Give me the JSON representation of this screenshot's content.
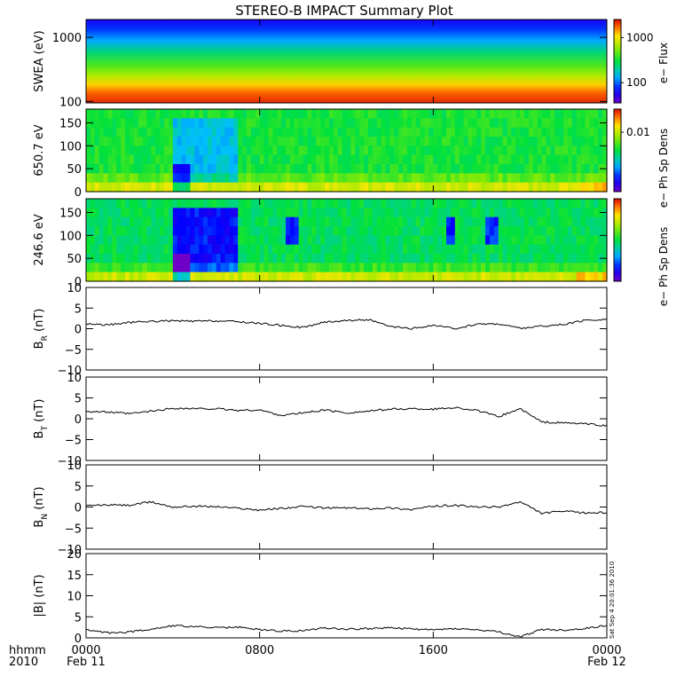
{
  "figure": {
    "title": "STEREO-B IMPACT Summary Plot",
    "time_unit_label": "hhmm",
    "year_label": "2010",
    "start_date_label": "Feb 11",
    "end_date_label": "Feb 12",
    "creation_stamp": "Sat Sep  4 20:01:36 2010"
  },
  "chart_data": [
    {
      "type": "heatmap",
      "name": "swea-spectrogram",
      "ylabel": "SWEA (eV)",
      "yscale": "log",
      "ylim": [
        95,
        1900
      ],
      "yticks": [
        100,
        1000
      ],
      "ytick_labels": [
        "100",
        "1000"
      ],
      "colorbar": {
        "label": "e− Flux",
        "ticks": [
          100,
          1000
        ],
        "tick_labels": [
          "100",
          "1000"
        ]
      }
    },
    {
      "type": "heatmap",
      "name": "pad-650",
      "ylabel": "650.7 eV",
      "ylim": [
        0,
        180
      ],
      "yticks": [
        0,
        50,
        100,
        150
      ],
      "ytick_labels": [
        "0",
        "50",
        "100",
        "150"
      ],
      "colorbar": {
        "label": "e− Ph Sp Dens",
        "ticks": [
          0.01
        ],
        "tick_labels": [
          "0.01"
        ]
      }
    },
    {
      "type": "heatmap",
      "name": "pad-246",
      "ylabel": "246.6 eV",
      "ylim": [
        0,
        180
      ],
      "yticks": [
        0,
        50,
        100,
        150
      ],
      "ytick_labels": [
        "0",
        "50",
        "100",
        "150"
      ],
      "colorbar": {
        "label": "e− Ph Sp Dens",
        "ticks": [],
        "tick_labels": []
      }
    },
    {
      "type": "line",
      "name": "br",
      "ylabel": "B_R (nT)",
      "ylim": [
        -10,
        10
      ],
      "yticks": [
        -10,
        -5,
        0,
        5,
        10
      ],
      "ytick_labels": [
        "−10",
        "−5",
        "0",
        "5",
        "10"
      ],
      "x": [
        0,
        1,
        2,
        3,
        4,
        5,
        6,
        7,
        8,
        9,
        10,
        11,
        12,
        13,
        14,
        15,
        16,
        17,
        18,
        19,
        20,
        21,
        22,
        23,
        24
      ],
      "y": [
        1.2,
        0.9,
        1.5,
        1.8,
        1.9,
        1.8,
        1.9,
        1.7,
        1.3,
        0.8,
        0.3,
        1.6,
        2.0,
        2.2,
        0.5,
        0.0,
        0.8,
        0.0,
        1.1,
        1.2,
        0.1,
        0.6,
        1.0,
        2.0,
        2.3
      ]
    },
    {
      "type": "line",
      "name": "bt",
      "ylabel": "B_T (nT)",
      "ylim": [
        -10,
        10
      ],
      "yticks": [
        -10,
        -5,
        0,
        5,
        10
      ],
      "ytick_labels": [
        "−10",
        "−5",
        "0",
        "5",
        "10"
      ],
      "x": [
        0,
        1,
        2,
        3,
        4,
        5,
        6,
        7,
        8,
        9,
        10,
        11,
        12,
        13,
        14,
        15,
        16,
        17,
        18,
        19,
        20,
        21,
        22,
        23,
        24
      ],
      "y": [
        1.8,
        1.6,
        1.2,
        1.8,
        2.5,
        2.4,
        2.4,
        2.0,
        2.1,
        0.8,
        1.4,
        2.1,
        1.4,
        1.8,
        2.3,
        2.4,
        2.3,
        2.7,
        2.0,
        0.5,
        2.4,
        -0.8,
        -1.0,
        -1.2,
        -1.7
      ]
    },
    {
      "type": "line",
      "name": "bn",
      "ylabel": "B_N (nT)",
      "ylim": [
        -10,
        10
      ],
      "yticks": [
        -10,
        -5,
        0,
        5,
        10
      ],
      "ytick_labels": [
        "−10",
        "−5",
        "0",
        "5",
        "10"
      ],
      "x": [
        0,
        1,
        2,
        3,
        4,
        5,
        6,
        7,
        8,
        9,
        10,
        11,
        12,
        13,
        14,
        15,
        16,
        17,
        18,
        19,
        20,
        21,
        22,
        23,
        24
      ],
      "y": [
        0.3,
        0.5,
        0.4,
        1.2,
        0.0,
        0.2,
        0.1,
        -0.3,
        -0.7,
        -0.3,
        0.1,
        -0.2,
        -0.2,
        -0.4,
        -0.2,
        -0.6,
        0.2,
        0.4,
        0.0,
        0.0,
        1.2,
        -1.5,
        -1.0,
        -1.4,
        -1.3
      ]
    },
    {
      "type": "line",
      "name": "bmag",
      "ylabel": "|B| (nT)",
      "ylim": [
        0,
        20
      ],
      "yticks": [
        0,
        5,
        10,
        15,
        20
      ],
      "ytick_labels": [
        "0",
        "5",
        "10",
        "15",
        "20"
      ],
      "x": [
        0,
        1,
        2,
        3,
        4,
        5,
        6,
        7,
        8,
        9,
        10,
        11,
        12,
        13,
        14,
        15,
        16,
        17,
        18,
        19,
        20,
        21,
        22,
        23,
        24
      ],
      "y": [
        1.9,
        1.2,
        1.4,
        2.1,
        2.9,
        2.7,
        2.4,
        2.5,
        2.0,
        1.6,
        1.7,
        2.4,
        2.1,
        2.2,
        2.4,
        2.1,
        1.9,
        2.2,
        1.9,
        1.4,
        0.2,
        2.0,
        1.8,
        2.2,
        3.0
      ]
    }
  ],
  "xaxis": {
    "xlim": [
      0,
      24
    ],
    "tick_hours": [
      0,
      8,
      16,
      24
    ],
    "tick_labels": [
      "0000",
      "0800",
      "1600",
      "0000"
    ]
  }
}
